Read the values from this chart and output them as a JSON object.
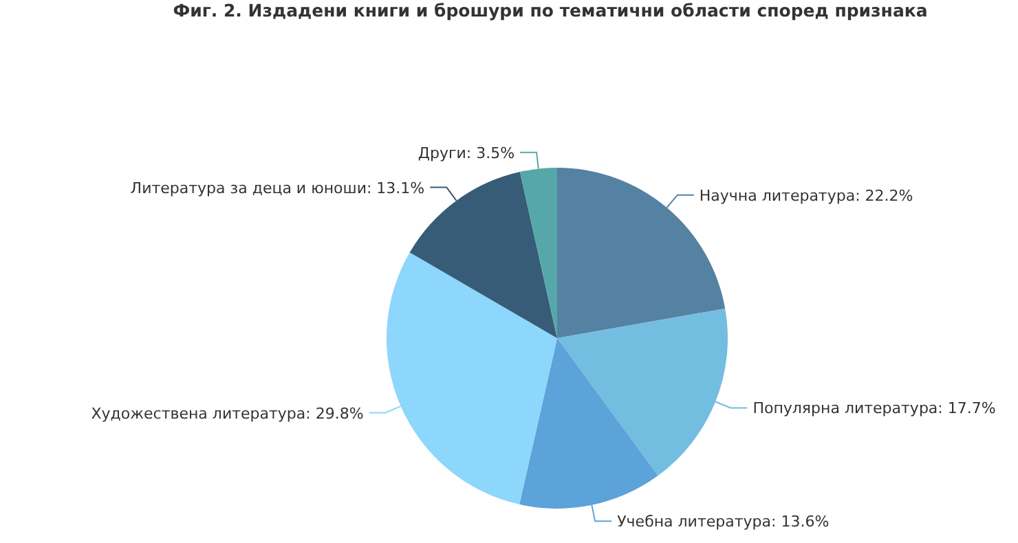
{
  "chart_data": {
    "type": "pie",
    "title": "Фиг. 2. Издадени книги и брошури по тематични области според признака",
    "categories": [
      "Научна литература",
      "Популярна литература",
      "Учебна литература",
      "Художествена литература",
      "Литература за деца и юноши",
      "Други"
    ],
    "values": [
      22.2,
      17.7,
      13.6,
      29.8,
      13.1,
      3.5
    ],
    "value_labels": [
      "22.2%",
      "17.7%",
      "13.6%",
      "29.8%",
      "13.1%",
      "3.5%"
    ],
    "colors": [
      "#5581a3",
      "#73bde0",
      "#5ba3d9",
      "#8dd6fc",
      "#365c78",
      "#56a8a8"
    ],
    "legend": false
  }
}
